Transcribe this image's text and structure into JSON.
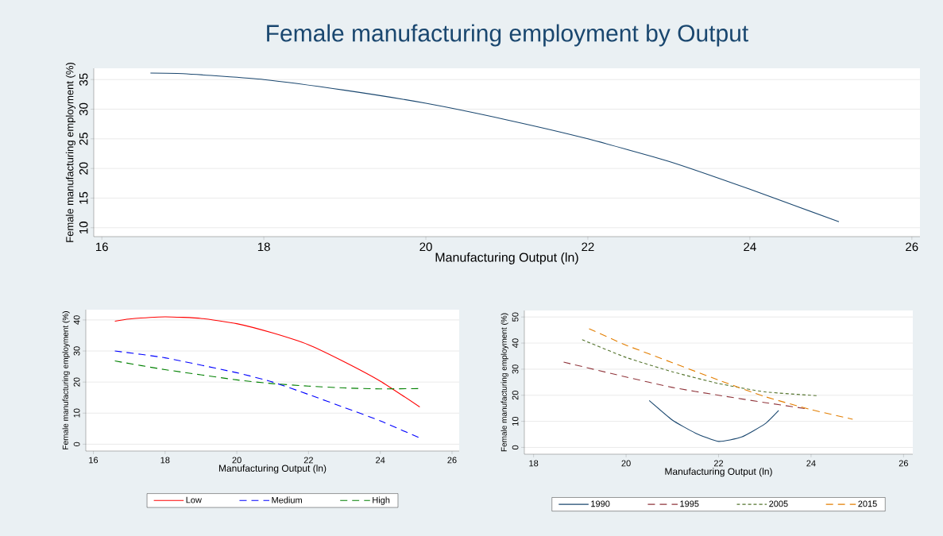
{
  "chart_data": [
    {
      "type": "line",
      "title": "Female manufacturing employment  by Output",
      "xlabel": "Manufacturing Output (ln)",
      "ylabel": "Female manufacturing employment (%)",
      "xlim": [
        15.9,
        26.1
      ],
      "ylim": [
        8.5,
        36.9
      ],
      "xticks": [
        16,
        18,
        20,
        22,
        24,
        26
      ],
      "yticks": [
        10,
        15,
        20,
        25,
        30,
        35
      ],
      "grid": "y",
      "legend": false,
      "series": [
        {
          "color": "#1a476f",
          "line_style": "solid",
          "x": [
            16.6,
            17,
            18,
            19,
            20,
            21,
            22,
            23,
            24,
            25.1
          ],
          "values": [
            36.1,
            36,
            35,
            33.2,
            31,
            28.2,
            25,
            21.2,
            16.5,
            11
          ]
        }
      ]
    },
    {
      "type": "line",
      "xlabel": "Manufacturing Output (ln)",
      "ylabel": "Female manufacturing employment (%)",
      "xlim": [
        15.79,
        26.2
      ],
      "ylim": [
        -2.2,
        43.3
      ],
      "xticks": [
        16,
        18,
        20,
        22,
        24,
        26
      ],
      "yticks": [
        0,
        10,
        20,
        30,
        40
      ],
      "grid": "y",
      "legend": "bottom",
      "series": [
        {
          "name": "Low",
          "color": "#ff0000",
          "line_style": "solid",
          "x": [
            16.6,
            17,
            18,
            19,
            20,
            21,
            22,
            23,
            24,
            25.1
          ],
          "values": [
            39.6,
            40.3,
            41,
            40.5,
            38.8,
            35.8,
            32,
            26.5,
            20.3,
            12
          ]
        },
        {
          "name": "Medium",
          "color": "#0000ff",
          "line_style": "dashed",
          "x": [
            16.6,
            18,
            20,
            21,
            22,
            23,
            24,
            25.1
          ],
          "values": [
            30,
            27.8,
            23,
            20,
            16,
            11.8,
            7.5,
            2
          ]
        },
        {
          "name": "High",
          "color": "#008000",
          "line_style": "dashed",
          "x": [
            16.6,
            18,
            20,
            21,
            22,
            23,
            24,
            25.1
          ],
          "values": [
            26.8,
            24,
            20.7,
            19.5,
            18.7,
            18.1,
            17.8,
            17.9
          ]
        }
      ]
    },
    {
      "type": "line",
      "xlabel": "Manufacturing Output (ln)",
      "ylabel": "Female manufacturing employment (%)",
      "xlim": [
        17.8,
        26.2
      ],
      "ylim": [
        -2.6,
        52.5
      ],
      "xticks": [
        18,
        20,
        22,
        24,
        26
      ],
      "yticks": [
        0,
        10,
        20,
        30,
        40,
        50
      ],
      "grid": "y",
      "legend": "bottom",
      "series": [
        {
          "name": "1990",
          "color": "#1a476f",
          "line_style": "solid",
          "x": [
            20.5,
            21,
            21.5,
            22,
            22.5,
            23,
            23.3
          ],
          "values": [
            18,
            10.5,
            5.5,
            2.3,
            4,
            9,
            14.2
          ]
        },
        {
          "name": "1995",
          "color": "#90353b",
          "line_style": "dashed",
          "x": [
            18.65,
            20,
            21,
            22,
            23,
            23.9
          ],
          "values": [
            32.7,
            27,
            23,
            20,
            17.2,
            14.8
          ]
        },
        {
          "name": "2005",
          "color": "#55752f",
          "line_style": "dotted",
          "x": [
            19.05,
            20,
            21,
            22,
            23,
            24.15
          ],
          "values": [
            41.3,
            34.5,
            29,
            24.5,
            21.3,
            19.8
          ]
        },
        {
          "name": "2015",
          "color": "#e37e00",
          "line_style": "dashed",
          "x": [
            19.2,
            20,
            21,
            22,
            23,
            24,
            24.9
          ],
          "values": [
            45.5,
            39.2,
            32.5,
            25.8,
            19.5,
            14.5,
            10.8
          ]
        }
      ]
    }
  ]
}
